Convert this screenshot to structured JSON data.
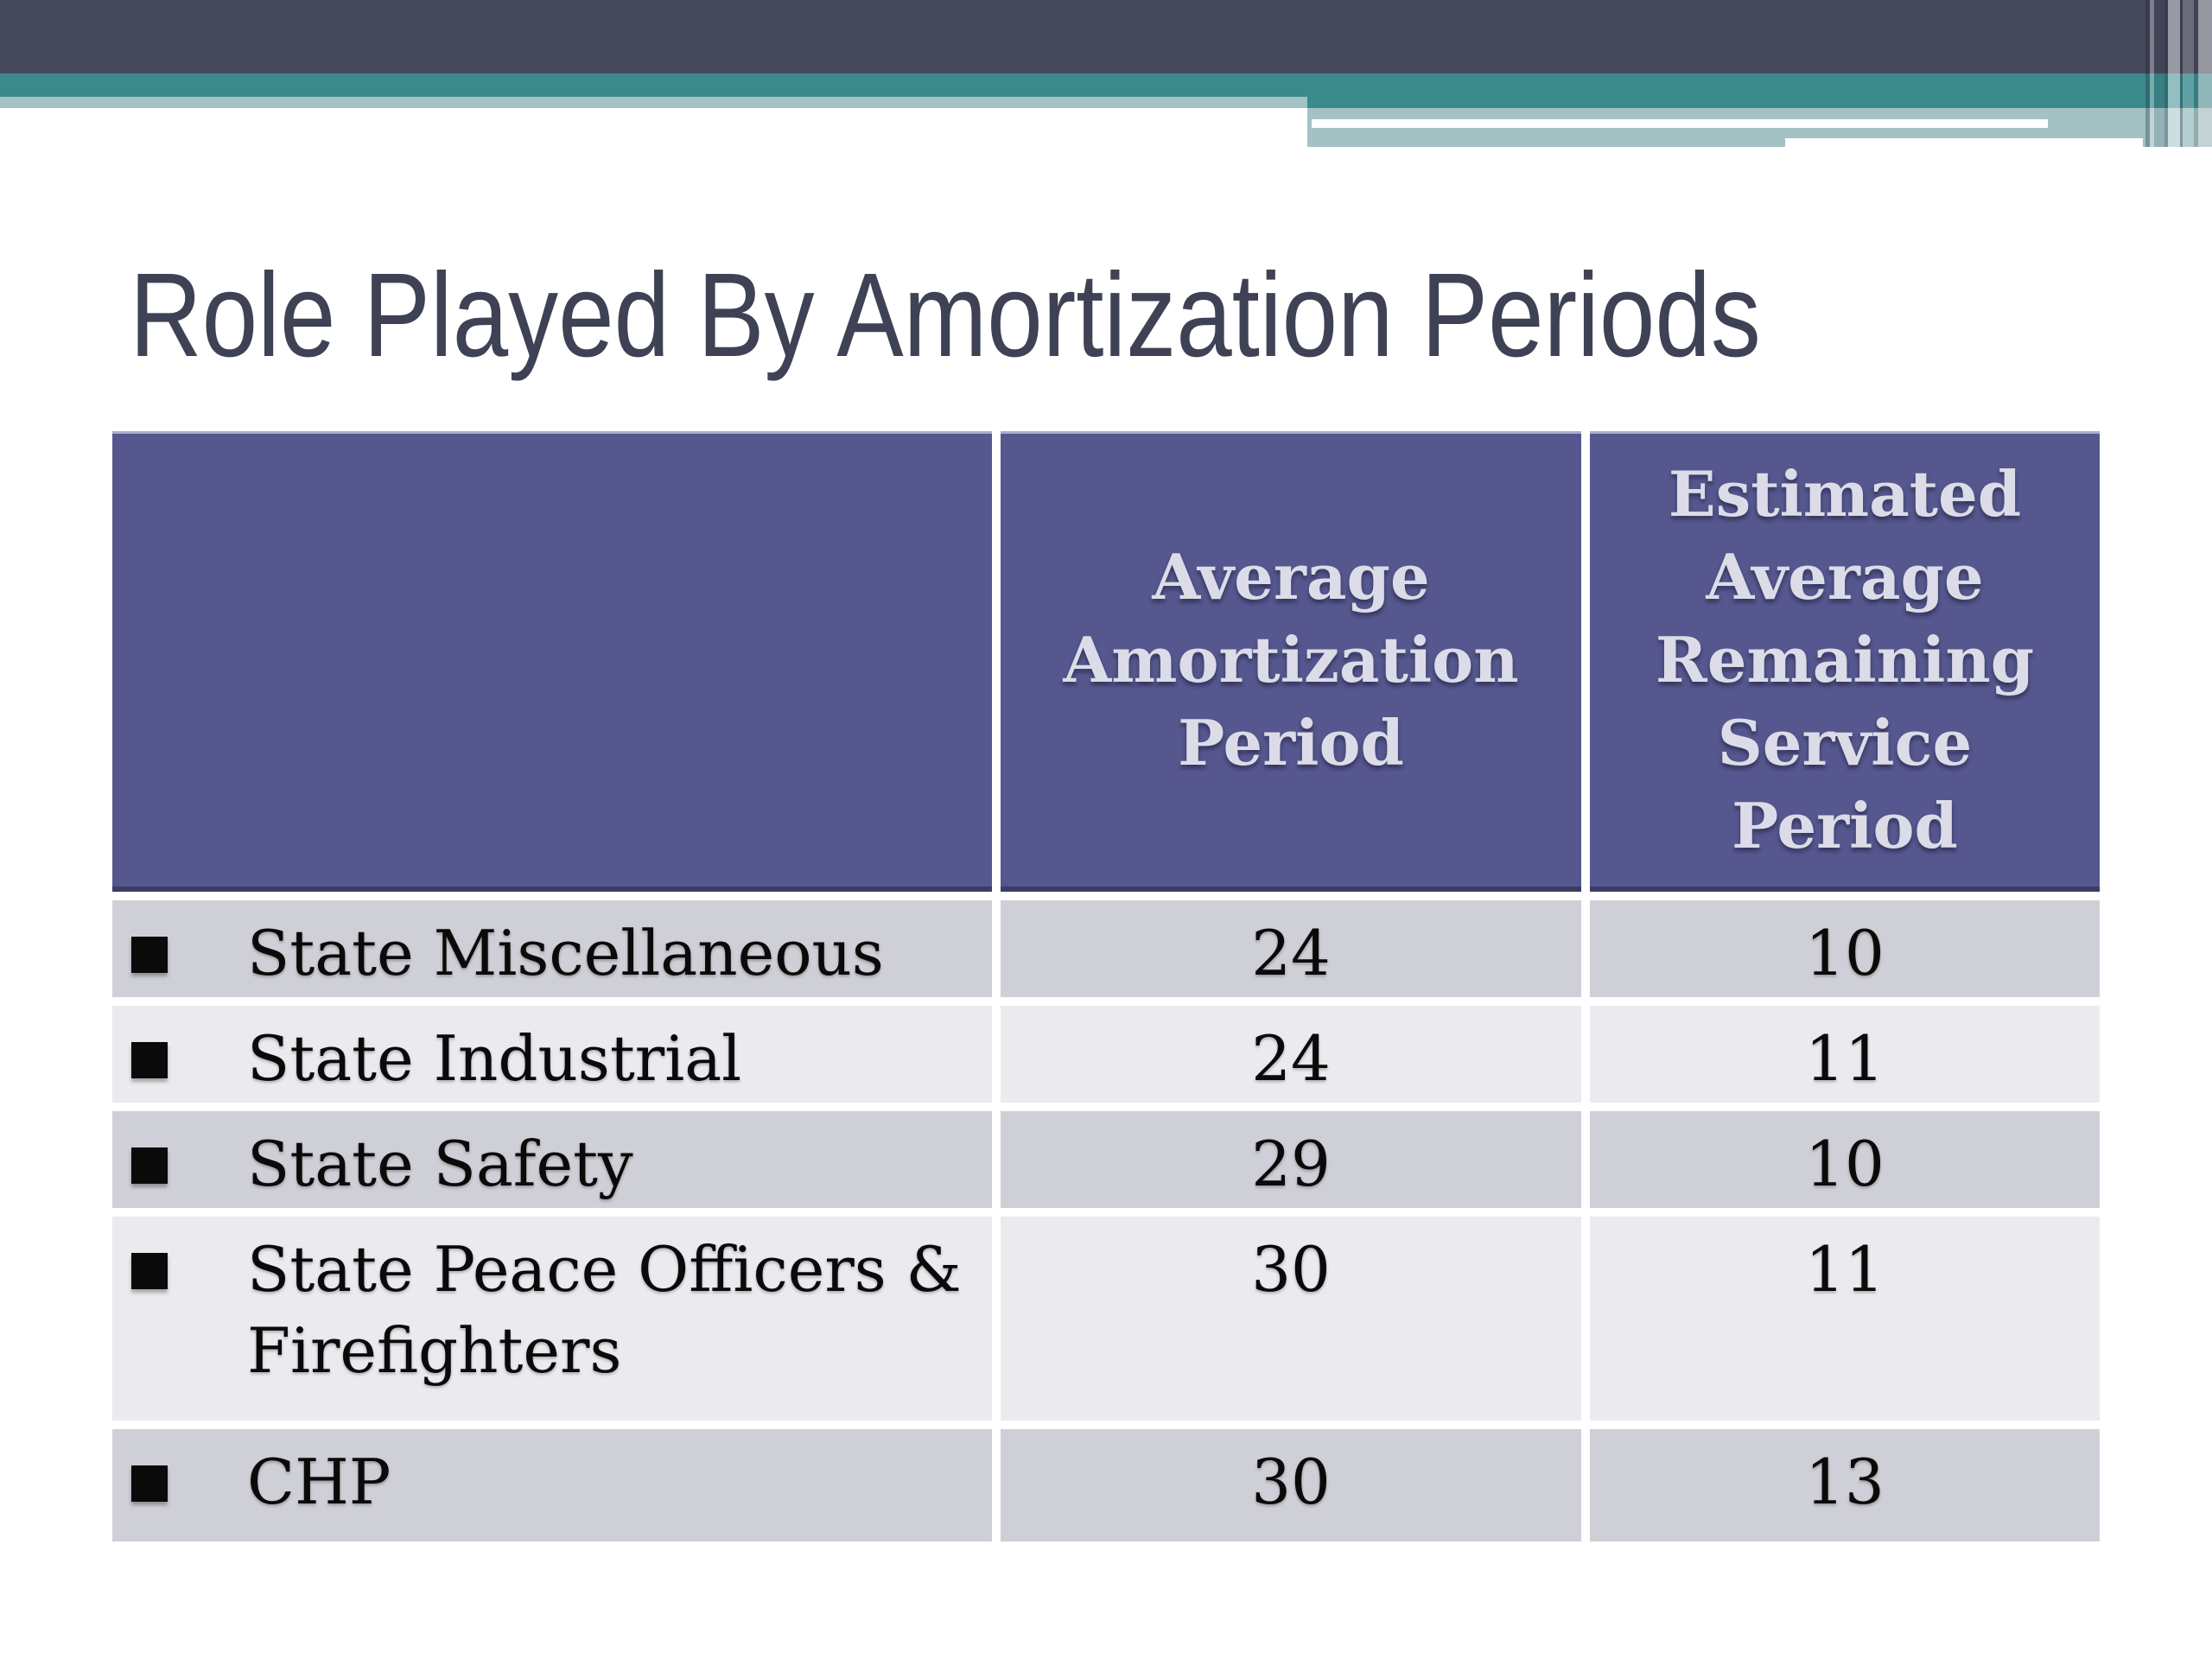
{
  "slide": {
    "title": "Role Played By Amortization Periods"
  },
  "table": {
    "columns": [
      "",
      "Average Amortization Period",
      "Estimated Average Remaining Service Period"
    ],
    "rows": [
      {
        "label": "State Miscellaneous",
        "values": [
          "24",
          "10"
        ]
      },
      {
        "label": "State Industrial",
        "values": [
          "24",
          "11"
        ]
      },
      {
        "label": "State Safety",
        "values": [
          "29",
          "10"
        ]
      },
      {
        "label": "State Peace Officers & Firefighters",
        "values": [
          "30",
          "11"
        ]
      },
      {
        "label": "CHP",
        "values": [
          "30",
          "13"
        ]
      }
    ]
  },
  "colors": {
    "banner_slate": "#45475A",
    "banner_teal": "#3A8A8C",
    "banner_light_teal": "#A2C2C4",
    "title_text": "#3F4254",
    "table_header_bg": "#55578E",
    "table_header_border_bottom": "#3B3D66",
    "table_header_text": "#DCDCE8",
    "row_odd_bg": "#CFCFD7",
    "row_even_bg": "#EBEBEF",
    "body_text": "#0A0A0A",
    "separator": "#FFFFFF"
  }
}
